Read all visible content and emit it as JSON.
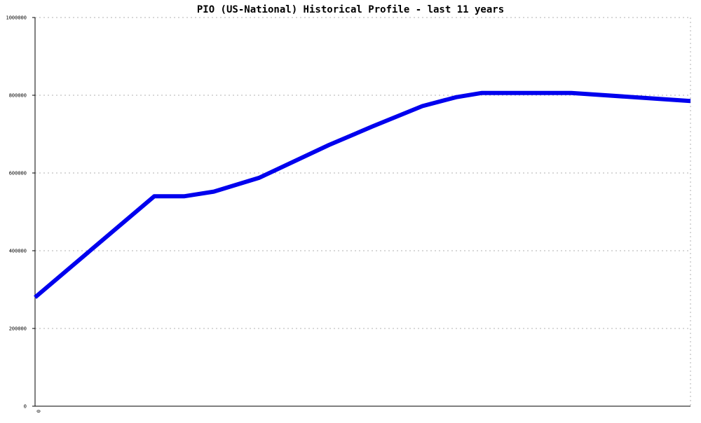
{
  "chart_data": {
    "type": "line",
    "title": "PIO (US-National) Historical Profile - last 11 years",
    "xlabel": "",
    "ylabel": "",
    "x_tick_labels": [
      "0"
    ],
    "y_tick_labels": [
      "0",
      "200000",
      "400000",
      "600000",
      "800000",
      "1000000"
    ],
    "ylim": [
      0,
      1000000
    ],
    "xlim": [
      0,
      1
    ],
    "grid": true,
    "series": [
      {
        "color": "#0000ee",
        "points": [
          {
            "x": 0.0,
            "y": 280000
          },
          {
            "x": 0.1818,
            "y": 540000
          },
          {
            "x": 0.2273,
            "y": 540000
          },
          {
            "x": 0.2727,
            "y": 552000
          },
          {
            "x": 0.3424,
            "y": 588000
          },
          {
            "x": 0.4485,
            "y": 672000
          },
          {
            "x": 0.5152,
            "y": 720000
          },
          {
            "x": 0.5909,
            "y": 772000
          },
          {
            "x": 0.6424,
            "y": 795000
          },
          {
            "x": 0.6818,
            "y": 806000
          },
          {
            "x": 0.8182,
            "y": 806000
          },
          {
            "x": 1.0,
            "y": 785000
          }
        ]
      }
    ]
  }
}
